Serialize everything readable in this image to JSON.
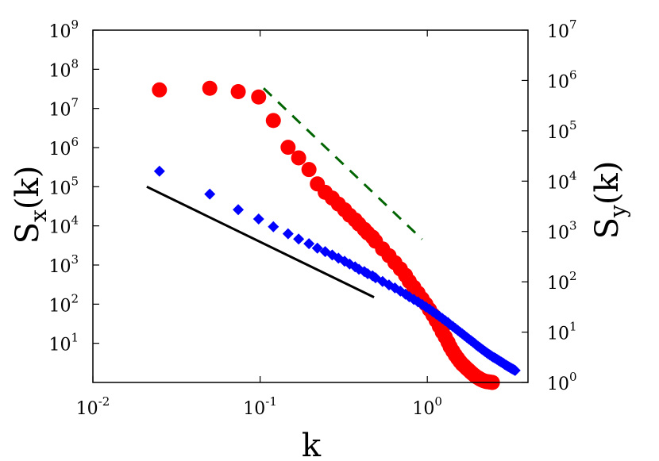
{
  "chart_data": {
    "type": "scatter",
    "xlabel": "k",
    "ylabel_left": {
      "base": "S",
      "sub": "x",
      "rest": "(k)"
    },
    "ylabel_right": {
      "base": "S",
      "sub": "y",
      "rest": "(k)"
    },
    "x_scale": "log",
    "y_left_scale": "log",
    "y_right_scale": "log",
    "xlim": [
      0.01,
      4.0
    ],
    "ylim_left": [
      1,
      1000000000
    ],
    "ylim_right": [
      1,
      10000000
    ],
    "x_ticks": [
      {
        "base": "10",
        "exp": "-2"
      },
      {
        "base": "10",
        "exp": "-1"
      },
      {
        "base": "10",
        "exp": "0"
      }
    ],
    "y_left_ticks": [
      {
        "base": "10",
        "exp": "1"
      },
      {
        "base": "10",
        "exp": "2"
      },
      {
        "base": "10",
        "exp": "3"
      },
      {
        "base": "10",
        "exp": "4"
      },
      {
        "base": "10",
        "exp": "5"
      },
      {
        "base": "10",
        "exp": "6"
      },
      {
        "base": "10",
        "exp": "7"
      },
      {
        "base": "10",
        "exp": "8"
      },
      {
        "base": "10",
        "exp": "9"
      }
    ],
    "y_right_ticks": [
      {
        "base": "10",
        "exp": "0"
      },
      {
        "base": "10",
        "exp": "1"
      },
      {
        "base": "10",
        "exp": "2"
      },
      {
        "base": "10",
        "exp": "3"
      },
      {
        "base": "10",
        "exp": "4"
      },
      {
        "base": "10",
        "exp": "5"
      },
      {
        "base": "10",
        "exp": "6"
      },
      {
        "base": "10",
        "exp": "7"
      }
    ],
    "grid": false,
    "legend": "none",
    "series": [
      {
        "axis": "right",
        "marker": "circle",
        "color": "#ff0000",
        "points": [
          [
            0.025,
            650000
          ],
          [
            0.05,
            700000
          ],
          [
            0.074,
            600000
          ],
          [
            0.098,
            470000
          ],
          [
            0.12,
            160000
          ],
          [
            0.147,
            47000
          ],
          [
            0.17,
            29000
          ],
          [
            0.196,
            17000
          ],
          [
            0.22,
            8800
          ],
          [
            0.245,
            6000
          ],
          [
            0.27,
            4600
          ],
          [
            0.294,
            3500
          ],
          [
            0.32,
            2700
          ],
          [
            0.343,
            2100
          ],
          [
            0.37,
            1700
          ],
          [
            0.39,
            1400
          ],
          [
            0.42,
            1100
          ],
          [
            0.44,
            930
          ],
          [
            0.47,
            770
          ],
          [
            0.49,
            640
          ],
          [
            0.54,
            450
          ],
          [
            0.59,
            330
          ],
          [
            0.64,
            240
          ],
          [
            0.69,
            180
          ],
          [
            0.74,
            135
          ],
          [
            0.78,
            102
          ],
          [
            0.83,
            78
          ],
          [
            0.88,
            60
          ],
          [
            0.93,
            46
          ],
          [
            0.98,
            36
          ],
          [
            1.03,
            28
          ],
          [
            1.08,
            22
          ],
          [
            1.13,
            17
          ],
          [
            1.18,
            13
          ],
          [
            1.23,
            10
          ],
          [
            1.28,
            8
          ],
          [
            1.33,
            6.3
          ],
          [
            1.37,
            5.1
          ],
          [
            1.42,
            4.2
          ],
          [
            1.47,
            3.5
          ],
          [
            1.52,
            3.0
          ],
          [
            1.57,
            2.6
          ],
          [
            1.62,
            2.3
          ],
          [
            1.67,
            2.1
          ],
          [
            1.72,
            1.9
          ],
          [
            1.77,
            1.75
          ],
          [
            1.82,
            1.6
          ],
          [
            1.87,
            1.48
          ],
          [
            1.92,
            1.38
          ],
          [
            1.96,
            1.3
          ],
          [
            2.01,
            1.24
          ],
          [
            2.06,
            1.18
          ],
          [
            2.11,
            1.13
          ],
          [
            2.16,
            1.09
          ],
          [
            2.21,
            1.06
          ],
          [
            2.26,
            1.04
          ],
          [
            2.31,
            1.03
          ],
          [
            2.36,
            1.02
          ],
          [
            2.41,
            1.01
          ],
          [
            2.45,
            1.0
          ]
        ]
      },
      {
        "axis": "left",
        "marker": "diamond",
        "color": "#0000ff",
        "points": [
          [
            0.025,
            250000
          ],
          [
            0.05,
            65000
          ],
          [
            0.074,
            26000
          ],
          [
            0.098,
            15000
          ],
          [
            0.12,
            9500
          ],
          [
            0.147,
            6300
          ],
          [
            0.17,
            4600
          ],
          [
            0.196,
            3500
          ],
          [
            0.22,
            2700
          ],
          [
            0.245,
            2200
          ],
          [
            0.27,
            1800
          ],
          [
            0.294,
            1500
          ],
          [
            0.32,
            1250
          ],
          [
            0.343,
            1060
          ],
          [
            0.37,
            900
          ],
          [
            0.39,
            780
          ],
          [
            0.42,
            680
          ],
          [
            0.44,
            600
          ],
          [
            0.47,
            530
          ],
          [
            0.49,
            470
          ],
          [
            0.54,
            380
          ],
          [
            0.59,
            310
          ],
          [
            0.64,
            260
          ],
          [
            0.69,
            215
          ],
          [
            0.74,
            180
          ],
          [
            0.78,
            155
          ],
          [
            0.83,
            132
          ],
          [
            0.88,
            114
          ],
          [
            0.93,
            98
          ],
          [
            0.98,
            85
          ],
          [
            1.03,
            74
          ],
          [
            1.08,
            64
          ],
          [
            1.13,
            56
          ],
          [
            1.18,
            49
          ],
          [
            1.23,
            43
          ],
          [
            1.28,
            38
          ],
          [
            1.33,
            34
          ],
          [
            1.37,
            30
          ],
          [
            1.42,
            27
          ],
          [
            1.47,
            24
          ],
          [
            1.52,
            21.5
          ],
          [
            1.57,
            19.3
          ],
          [
            1.62,
            17.4
          ],
          [
            1.67,
            15.7
          ],
          [
            1.72,
            14.2
          ],
          [
            1.77,
            12.9
          ],
          [
            1.82,
            11.8
          ],
          [
            1.87,
            10.8
          ],
          [
            1.92,
            9.9
          ],
          [
            1.96,
            9.1
          ],
          [
            2.01,
            8.4
          ],
          [
            2.06,
            7.8
          ],
          [
            2.11,
            7.2
          ],
          [
            2.16,
            6.7
          ],
          [
            2.21,
            6.2
          ],
          [
            2.26,
            5.8
          ],
          [
            2.31,
            5.4
          ],
          [
            2.36,
            5.1
          ],
          [
            2.41,
            4.8
          ],
          [
            2.46,
            4.5
          ],
          [
            2.51,
            4.3
          ],
          [
            2.56,
            4.1
          ],
          [
            2.61,
            3.9
          ],
          [
            2.66,
            3.7
          ],
          [
            2.71,
            3.5
          ],
          [
            2.76,
            3.35
          ],
          [
            2.81,
            3.2
          ],
          [
            2.86,
            3.05
          ],
          [
            2.9,
            2.9
          ],
          [
            2.95,
            2.78
          ],
          [
            3.0,
            2.66
          ],
          [
            3.05,
            2.55
          ],
          [
            3.1,
            2.45
          ],
          [
            3.15,
            2.35
          ],
          [
            3.2,
            2.26
          ],
          [
            3.25,
            2.18
          ],
          [
            3.3,
            2.1
          ],
          [
            3.35,
            2.03
          ]
        ]
      }
    ],
    "guide_lines": [
      {
        "axis": "left",
        "style": "solid",
        "color": "#000000",
        "from": [
          0.021,
          100000
        ],
        "to": [
          0.48,
          150
        ]
      },
      {
        "axis": "right",
        "style": "dashed",
        "color": "#006400",
        "from": [
          0.105,
          700000
        ],
        "to": [
          0.93,
          700
        ]
      }
    ]
  }
}
